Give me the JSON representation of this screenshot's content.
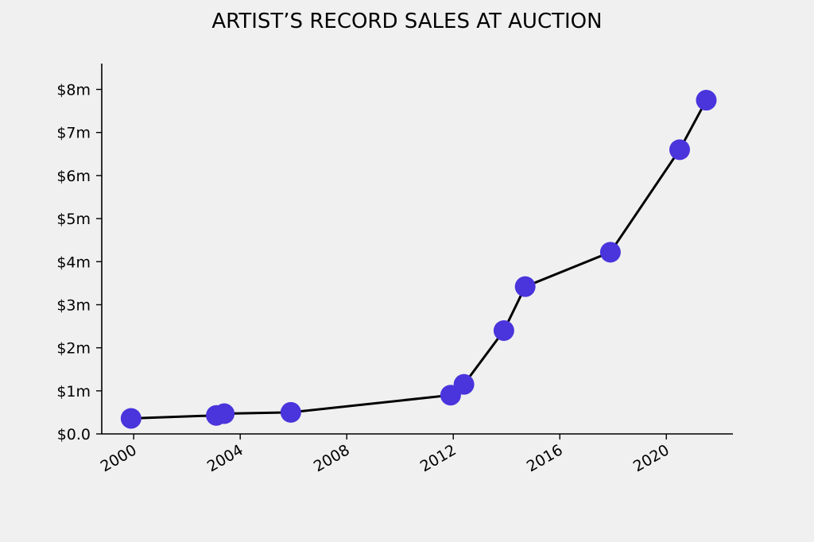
{
  "chart_data": {
    "type": "line",
    "title": "ARTIST’S RECORD SALES AT AUCTION",
    "xlabel": "",
    "ylabel": "",
    "x_tick_labels": [
      "2000",
      "2004",
      "2008",
      "2012",
      "2016",
      "2020"
    ],
    "x_ticks": [
      2000,
      2004,
      2008,
      2012,
      2016,
      2020
    ],
    "y_tick_labels": [
      "$0.0",
      "$1m",
      "$2m",
      "$3m",
      "$4m",
      "$5m",
      "$6m",
      "$7m",
      "$8m"
    ],
    "y_ticks": [
      0,
      1,
      2,
      3,
      4,
      5,
      6,
      7,
      8
    ],
    "y_unit": "millions of dollars",
    "xlim": [
      1998.8,
      2022.5
    ],
    "ylim": [
      0,
      8.6
    ],
    "grid": false,
    "line_color": "#000000",
    "marker_color": "#4a34dc",
    "series": [
      {
        "x": [
          1999.9,
          2003.1,
          2003.4,
          2005.9,
          2011.9,
          2012.4,
          2013.9,
          2014.7,
          2017.9,
          2020.5,
          2021.5
        ],
        "values": [
          0.36,
          0.43,
          0.47,
          0.5,
          0.9,
          1.15,
          2.4,
          3.42,
          4.22,
          6.6,
          7.75
        ]
      }
    ]
  }
}
